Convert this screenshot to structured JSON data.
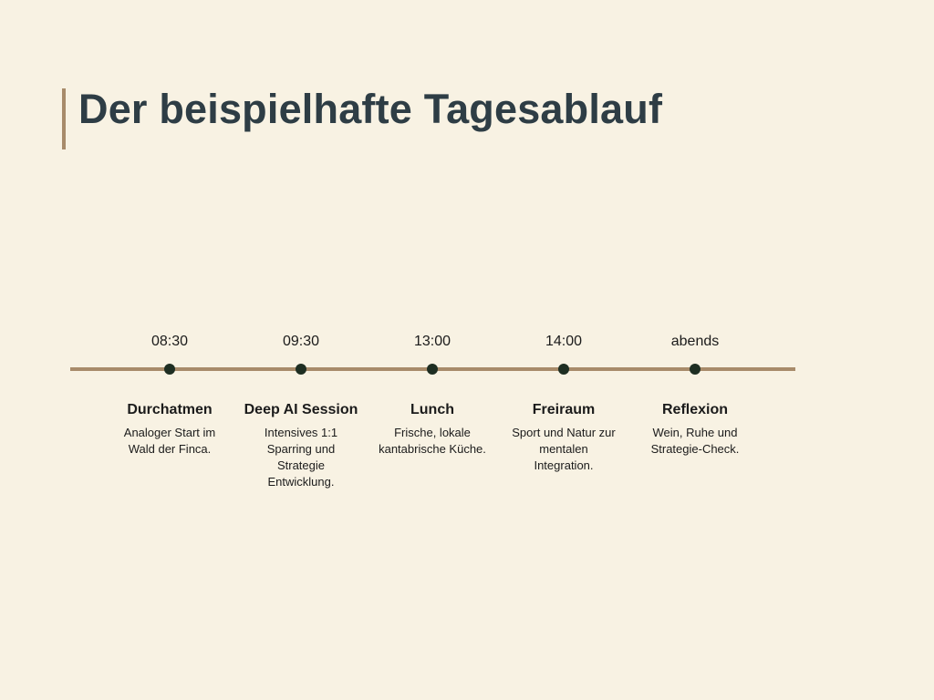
{
  "header": {
    "title": "Der beispielhafte Tagesablauf"
  },
  "timeline": {
    "items": [
      {
        "time": "08:30",
        "title": "Durchatmen",
        "description": "Analoger Start im Wald der Finca."
      },
      {
        "time": "09:30",
        "title": "Deep AI Session",
        "description": "Intensives 1:1 Sparring und Strategie Entwicklung."
      },
      {
        "time": "13:00",
        "title": "Lunch",
        "description": "Frische, lokale kantabrische Küche."
      },
      {
        "time": "14:00",
        "title": "Freiraum",
        "description": "Sport und Natur zur mentalen Integration."
      },
      {
        "time": "abends",
        "title": "Reflexion",
        "description": "Wein, Ruhe und Strategie-Check."
      }
    ]
  }
}
